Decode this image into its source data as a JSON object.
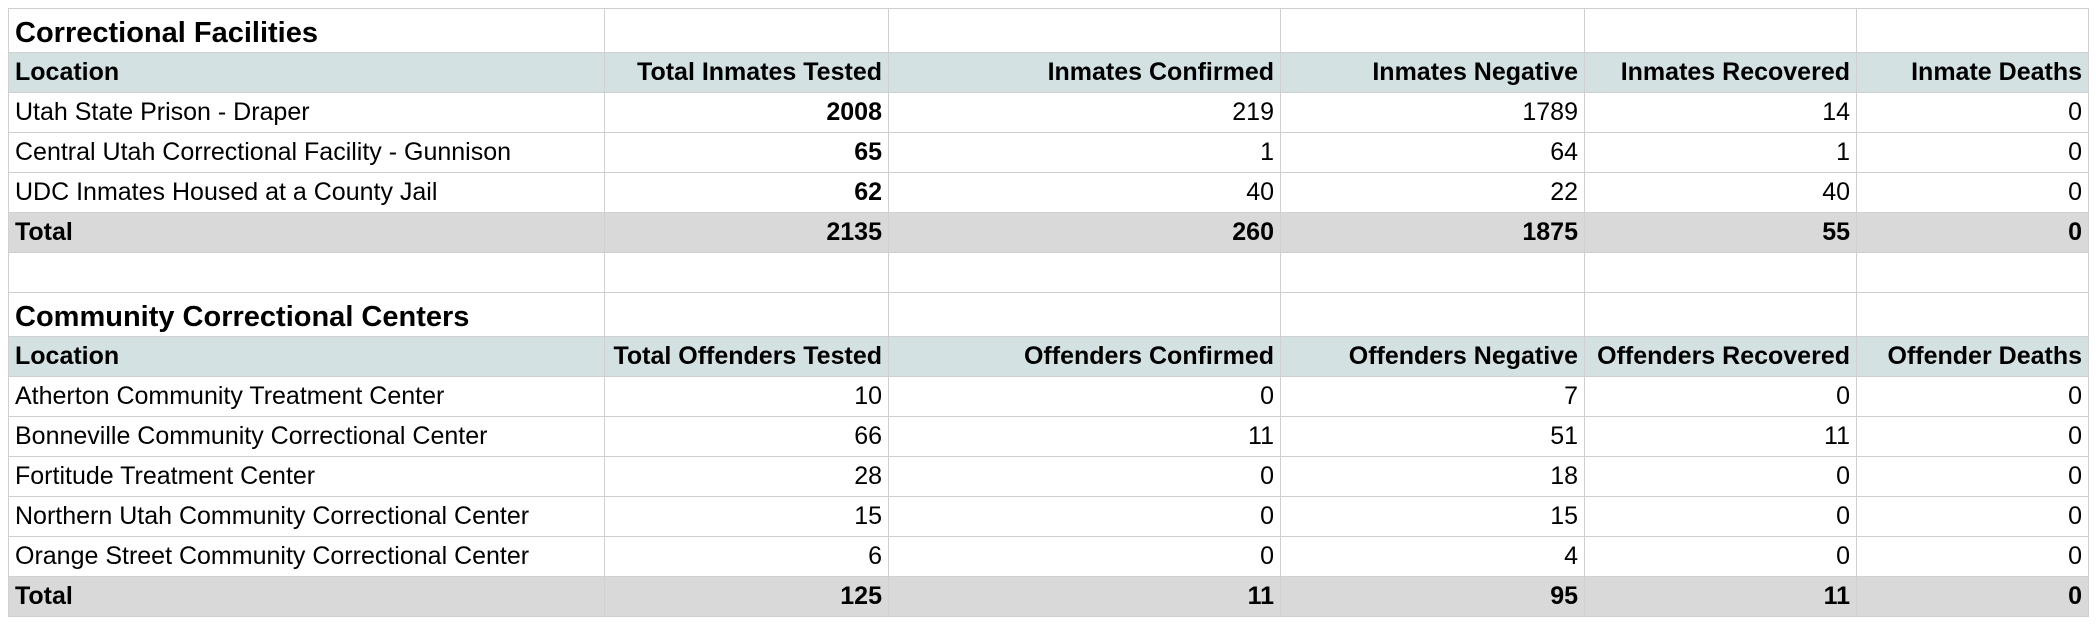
{
  "sections": [
    {
      "title": "Correctional Facilities",
      "headers": [
        "Location",
        "Total Inmates Tested",
        "Inmates Confirmed",
        "Inmates Negative",
        "Inmates Recovered",
        "Inmate Deaths"
      ],
      "rows": [
        [
          "Utah State Prison - Draper",
          "2008",
          "219",
          "1789",
          "14",
          "0"
        ],
        [
          "Central Utah Correctional Facility - Gunnison",
          "65",
          "1",
          "64",
          "1",
          "0"
        ],
        [
          "UDC Inmates Housed at a County Jail",
          "62",
          "40",
          "22",
          "40",
          "0"
        ]
      ],
      "total": [
        "Total",
        "2135",
        "260",
        "1875",
        "55",
        "0"
      ]
    },
    {
      "title": "Community Correctional Centers",
      "headers": [
        "Location",
        "Total Offenders Tested",
        "Offenders Confirmed",
        "Offenders Negative",
        "Offenders Recovered",
        "Offender Deaths"
      ],
      "rows": [
        [
          "Atherton Community Treatment Center",
          "10",
          "0",
          "7",
          "0",
          "0"
        ],
        [
          "Bonneville Community Correctional Center",
          "66",
          "11",
          "51",
          "11",
          "0"
        ],
        [
          "Fortitude Treatment Center",
          "28",
          "0",
          "18",
          "0",
          "0"
        ],
        [
          "Northern Utah Community Correctional Center",
          "15",
          "0",
          "15",
          "0",
          "0"
        ],
        [
          "Orange Street Community Correctional Center",
          "6",
          "0",
          "4",
          "0",
          "0"
        ]
      ],
      "total": [
        "Total",
        "125",
        "11",
        "95",
        "11",
        "0"
      ]
    }
  ]
}
